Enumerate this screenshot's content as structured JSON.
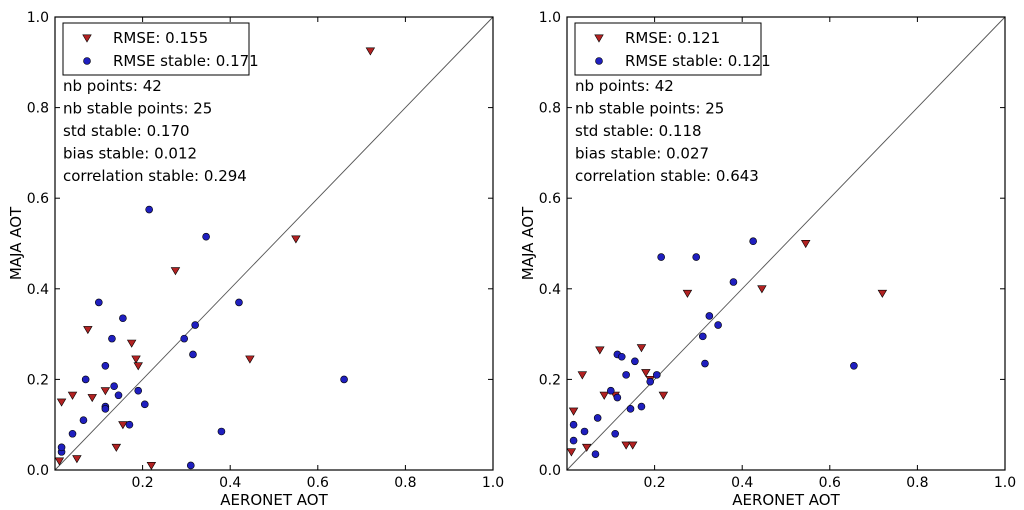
{
  "chart_data": [
    {
      "type": "scatter",
      "title": "",
      "xlabel": "AERONET AOT",
      "ylabel": "MAJA AOT",
      "xlim": [
        0.0,
        1.0
      ],
      "ylim": [
        0.0,
        1.0
      ],
      "x_ticks": [
        "0.2",
        "0.4",
        "0.6",
        "0.8",
        "1.0"
      ],
      "y_ticks": [
        "0.0",
        "0.2",
        "0.4",
        "0.6",
        "0.8",
        "1.0"
      ],
      "grid": false,
      "identity_line": true,
      "legend_position": "top-left",
      "stats": [
        "nb points: 42",
        "nb stable points: 25",
        "std stable: 0.170",
        "bias stable: 0.012",
        "correlation stable: 0.294"
      ],
      "series": [
        {
          "name": "RMSE: 0.155",
          "marker": "triangle-down",
          "color": "#b22222",
          "points": [
            [
              0.015,
              0.15
            ],
            [
              0.01,
              0.02
            ],
            [
              0.04,
              0.165
            ],
            [
              0.05,
              0.025
            ],
            [
              0.075,
              0.31
            ],
            [
              0.085,
              0.16
            ],
            [
              0.115,
              0.175
            ],
            [
              0.155,
              0.1
            ],
            [
              0.175,
              0.28
            ],
            [
              0.185,
              0.245
            ],
            [
              0.19,
              0.23
            ],
            [
              0.14,
              0.05
            ],
            [
              0.275,
              0.44
            ],
            [
              0.22,
              0.01
            ],
            [
              0.445,
              0.245
            ],
            [
              0.55,
              0.51
            ],
            [
              0.72,
              0.925
            ]
          ]
        },
        {
          "name": "RMSE stable: 0.171",
          "marker": "circle",
          "color": "#1f1fbf",
          "points": [
            [
              0.015,
              0.04
            ],
            [
              0.015,
              0.05
            ],
            [
              0.04,
              0.08
            ],
            [
              0.065,
              0.11
            ],
            [
              0.07,
              0.2
            ],
            [
              0.1,
              0.37
            ],
            [
              0.115,
              0.23
            ],
            [
              0.115,
              0.14
            ],
            [
              0.115,
              0.135
            ],
            [
              0.13,
              0.29
            ],
            [
              0.135,
              0.185
            ],
            [
              0.145,
              0.165
            ],
            [
              0.155,
              0.335
            ],
            [
              0.17,
              0.1
            ],
            [
              0.19,
              0.175
            ],
            [
              0.205,
              0.145
            ],
            [
              0.215,
              0.575
            ],
            [
              0.295,
              0.29
            ],
            [
              0.31,
              0.01
            ],
            [
              0.315,
              0.255
            ],
            [
              0.32,
              0.32
            ],
            [
              0.345,
              0.515
            ],
            [
              0.38,
              0.085
            ],
            [
              0.42,
              0.37
            ],
            [
              0.66,
              0.2
            ]
          ]
        }
      ]
    },
    {
      "type": "scatter",
      "title": "",
      "xlabel": "AERONET AOT",
      "ylabel": "MAJA AOT",
      "xlim": [
        0.0,
        1.0
      ],
      "ylim": [
        0.0,
        1.0
      ],
      "x_ticks": [
        "0.2",
        "0.4",
        "0.6",
        "0.8",
        "1.0"
      ],
      "y_ticks": [
        "0.0",
        "0.2",
        "0.4",
        "0.6",
        "0.8",
        "1.0"
      ],
      "grid": false,
      "identity_line": true,
      "legend_position": "top-left",
      "stats": [
        "nb points: 42",
        "nb stable points: 25",
        "std stable: 0.118",
        "bias stable: 0.027",
        "correlation stable: 0.643"
      ],
      "series": [
        {
          "name": "RMSE: 0.121",
          "marker": "triangle-down",
          "color": "#b22222",
          "points": [
            [
              0.015,
              0.13
            ],
            [
              0.01,
              0.04
            ],
            [
              0.035,
              0.21
            ],
            [
              0.045,
              0.05
            ],
            [
              0.075,
              0.265
            ],
            [
              0.085,
              0.165
            ],
            [
              0.11,
              0.165
            ],
            [
              0.135,
              0.055
            ],
            [
              0.15,
              0.055
            ],
            [
              0.17,
              0.27
            ],
            [
              0.18,
              0.215
            ],
            [
              0.19,
              0.2
            ],
            [
              0.22,
              0.165
            ],
            [
              0.275,
              0.39
            ],
            [
              0.445,
              0.4
            ],
            [
              0.545,
              0.5
            ],
            [
              0.72,
              0.39
            ]
          ]
        },
        {
          "name": "RMSE stable: 0.121",
          "marker": "circle",
          "color": "#1f1fbf",
          "points": [
            [
              0.015,
              0.1
            ],
            [
              0.015,
              0.065
            ],
            [
              0.04,
              0.085
            ],
            [
              0.065,
              0.035
            ],
            [
              0.07,
              0.115
            ],
            [
              0.1,
              0.175
            ],
            [
              0.11,
              0.08
            ],
            [
              0.115,
              0.16
            ],
            [
              0.115,
              0.255
            ],
            [
              0.125,
              0.25
            ],
            [
              0.135,
              0.21
            ],
            [
              0.145,
              0.135
            ],
            [
              0.155,
              0.24
            ],
            [
              0.17,
              0.14
            ],
            [
              0.19,
              0.195
            ],
            [
              0.205,
              0.21
            ],
            [
              0.215,
              0.47
            ],
            [
              0.295,
              0.47
            ],
            [
              0.31,
              0.295
            ],
            [
              0.315,
              0.235
            ],
            [
              0.325,
              0.34
            ],
            [
              0.345,
              0.32
            ],
            [
              0.38,
              0.415
            ],
            [
              0.425,
              0.505
            ],
            [
              0.655,
              0.23
            ]
          ]
        }
      ]
    }
  ]
}
